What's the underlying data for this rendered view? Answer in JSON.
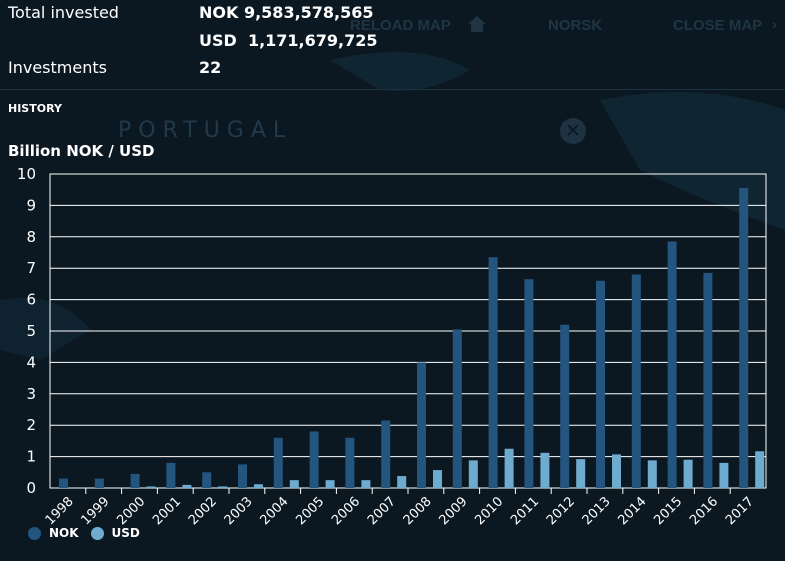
{
  "background": {
    "reload_map": "RELOAD MAP",
    "norsk": "NORSK",
    "close_map": "CLOSE MAP",
    "country": "PORTUGAL"
  },
  "summary": {
    "total_invested_label": "Total invested",
    "nok_value": "NOK 9,583,578,565",
    "usd_value": "USD  1,171,679,725",
    "investments_label": "Investments",
    "investments_value": "22"
  },
  "section_label": "HISTORY",
  "colors": {
    "background": "#0b1822",
    "nok": "#24557f",
    "usd": "#6eaccf",
    "grid": "#ffffff"
  },
  "chart_data": {
    "type": "bar",
    "title": "Billion NOK / USD",
    "categories": [
      "1998",
      "1999",
      "2000",
      "2001",
      "2002",
      "2003",
      "2004",
      "2005",
      "2006",
      "2007",
      "2008",
      "2009",
      "2010",
      "2011",
      "2012",
      "2013",
      "2014",
      "2015",
      "2016",
      "2017"
    ],
    "series": [
      {
        "name": "NOK",
        "values": [
          0.3,
          0.3,
          0.45,
          0.8,
          0.5,
          0.75,
          1.6,
          1.8,
          1.6,
          2.15,
          4.0,
          5.05,
          7.35,
          6.65,
          5.2,
          6.6,
          6.8,
          7.85,
          6.85,
          9.55
        ]
      },
      {
        "name": "USD",
        "values": [
          0.0,
          0.0,
          0.05,
          0.1,
          0.05,
          0.12,
          0.25,
          0.25,
          0.25,
          0.38,
          0.57,
          0.88,
          1.25,
          1.12,
          0.92,
          1.07,
          0.88,
          0.9,
          0.8,
          1.17
        ]
      }
    ],
    "yticks": [
      "0",
      "1",
      "2",
      "3",
      "4",
      "5",
      "6",
      "7",
      "8",
      "9",
      "10"
    ],
    "ylim": [
      0,
      10
    ],
    "grid": true,
    "legend": "bottom-left"
  }
}
